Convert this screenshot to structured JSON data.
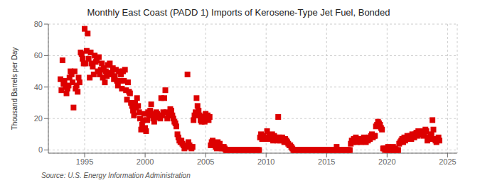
{
  "chart_data": {
    "type": "scatter",
    "title": "Monthly East Coast (PADD 1) Imports of Kerosene-Type Jet Fuel, Bonded",
    "ylabel": "Thousand Barrels per Day",
    "annotations": [
      "Source: U.S. Energy Information Administration"
    ],
    "color": "#dd0000",
    "marker": "square",
    "grid": true,
    "xlim": [
      1992.0,
      2025.8
    ],
    "xticks": [
      1995,
      2000,
      2005,
      2010,
      2015,
      2020,
      2025
    ],
    "ylim": [
      -2,
      80
    ],
    "yticks": [
      0,
      20,
      40,
      60,
      80
    ],
    "x": [
      1993.0,
      1993.08,
      1993.17,
      1993.25,
      1993.33,
      1993.42,
      1993.5,
      1993.58,
      1993.67,
      1993.75,
      1993.83,
      1993.92,
      1994.0,
      1994.08,
      1994.17,
      1994.25,
      1994.33,
      1994.42,
      1994.5,
      1994.58,
      1994.67,
      1994.75,
      1994.83,
      1994.92,
      1995.0,
      1995.08,
      1995.17,
      1995.25,
      1995.33,
      1995.42,
      1995.5,
      1995.58,
      1995.67,
      1995.75,
      1995.83,
      1995.92,
      1996.0,
      1996.08,
      1996.17,
      1996.25,
      1996.33,
      1996.42,
      1996.5,
      1996.58,
      1996.67,
      1996.75,
      1996.83,
      1996.92,
      1997.0,
      1997.08,
      1997.17,
      1997.25,
      1997.33,
      1997.42,
      1997.5,
      1997.58,
      1997.67,
      1997.75,
      1997.83,
      1997.92,
      1998.0,
      1998.08,
      1998.17,
      1998.25,
      1998.33,
      1998.42,
      1998.5,
      1998.58,
      1998.67,
      1998.75,
      1998.83,
      1998.92,
      1999.0,
      1999.08,
      1999.17,
      1999.25,
      1999.33,
      1999.42,
      1999.5,
      1999.58,
      1999.67,
      1999.75,
      1999.83,
      1999.92,
      2000.0,
      2000.08,
      2000.17,
      2000.25,
      2000.33,
      2000.42,
      2000.5,
      2000.58,
      2000.67,
      2000.75,
      2000.83,
      2000.92,
      2001.0,
      2001.08,
      2001.17,
      2001.25,
      2001.33,
      2001.42,
      2001.5,
      2001.58,
      2001.67,
      2001.75,
      2001.83,
      2001.92,
      2002.0,
      2002.08,
      2002.17,
      2002.25,
      2002.33,
      2002.42,
      2002.5,
      2002.58,
      2002.67,
      2002.75,
      2002.83,
      2002.92,
      2003.0,
      2003.08,
      2003.17,
      2003.25,
      2003.33,
      2003.5,
      2003.58,
      2003.67,
      2003.75,
      2003.83,
      2003.92,
      2004.0,
      2004.08,
      2004.17,
      2004.25,
      2004.33,
      2004.42,
      2004.5,
      2004.58,
      2004.67,
      2004.75,
      2004.83,
      2004.92,
      2005.0,
      2005.08,
      2005.17,
      2005.25,
      2005.33,
      2005.42,
      2005.5,
      2005.58,
      2005.67,
      2005.75,
      2005.83,
      2005.92,
      2006.0,
      2006.08,
      2006.17,
      2006.25,
      2006.33,
      2006.42,
      2006.5,
      2006.58,
      2006.67,
      2006.75,
      2006.83,
      2006.92,
      2007.0,
      2007.08,
      2007.17,
      2007.25,
      2007.33,
      2007.42,
      2007.5,
      2007.58,
      2007.67,
      2007.75,
      2007.83,
      2007.92,
      2008.0,
      2008.08,
      2008.17,
      2008.25,
      2008.33,
      2008.42,
      2008.5,
      2008.58,
      2008.67,
      2008.75,
      2008.83,
      2008.92,
      2009.0,
      2009.08,
      2009.17,
      2009.25,
      2009.33,
      2009.42,
      2009.5,
      2009.58,
      2009.67,
      2009.75,
      2009.83,
      2009.92,
      2010.0,
      2010.08,
      2010.17,
      2010.25,
      2010.33,
      2010.42,
      2010.5,
      2010.58,
      2010.67,
      2010.75,
      2010.83,
      2010.92,
      2011.0,
      2011.08,
      2011.17,
      2011.25,
      2011.33,
      2011.42,
      2011.5,
      2011.58,
      2011.67,
      2011.75,
      2011.83,
      2011.92,
      2012.0,
      2012.08,
      2012.17,
      2012.25,
      2012.33,
      2012.42,
      2012.5,
      2012.58,
      2012.67,
      2012.75,
      2012.83,
      2012.92,
      2013.0,
      2013.08,
      2013.17,
      2013.25,
      2013.33,
      2013.42,
      2013.5,
      2013.58,
      2013.67,
      2013.75,
      2013.83,
      2013.92,
      2014.0,
      2014.08,
      2014.17,
      2014.25,
      2014.33,
      2014.42,
      2014.5,
      2014.58,
      2014.67,
      2014.75,
      2014.83,
      2014.92,
      2015.0,
      2015.08,
      2015.17,
      2015.25,
      2015.33,
      2015.42,
      2015.5,
      2015.58,
      2015.67,
      2015.75,
      2015.83,
      2015.92,
      2016.0,
      2016.08,
      2016.17,
      2016.25,
      2016.33,
      2016.42,
      2016.5,
      2016.58,
      2016.67,
      2016.75,
      2016.83,
      2016.92,
      2017.0,
      2017.08,
      2017.17,
      2017.25,
      2017.33,
      2017.42,
      2017.5,
      2017.58,
      2017.67,
      2017.75,
      2017.83,
      2017.92,
      2018.0,
      2018.08,
      2018.17,
      2018.25,
      2018.33,
      2018.42,
      2018.5,
      2018.58,
      2018.67,
      2018.75,
      2018.83,
      2018.92,
      2019.0,
      2019.08,
      2019.17,
      2019.25,
      2019.33,
      2019.42,
      2019.5,
      2019.58,
      2019.67,
      2019.75,
      2019.83,
      2019.92,
      2020.0,
      2020.08,
      2020.17,
      2020.25,
      2020.33,
      2020.42,
      2020.5,
      2020.58,
      2020.67,
      2020.75,
      2020.83,
      2020.92,
      2021.0,
      2021.08,
      2021.17,
      2021.25,
      2021.33,
      2021.42,
      2021.5,
      2021.58,
      2021.67,
      2021.75,
      2021.83,
      2021.92,
      2022.0,
      2022.08,
      2022.17,
      2022.25,
      2022.33,
      2022.42,
      2022.5,
      2022.58,
      2022.67,
      2022.75,
      2022.83,
      2022.92,
      2023.0,
      2023.08,
      2023.17,
      2023.25,
      2023.33,
      2023.42,
      2023.5,
      2023.58,
      2023.67,
      2023.75,
      2023.83,
      2023.92,
      2024.0,
      2024.08,
      2024.17,
      2024.25,
      2024.33
    ],
    "values": [
      45,
      38,
      57,
      42,
      44,
      40,
      36,
      39,
      41,
      46,
      50,
      48,
      43,
      27,
      50,
      39,
      41,
      37,
      46,
      43,
      62,
      61,
      58,
      55,
      77,
      55,
      63,
      74,
      58,
      46,
      62,
      55,
      53,
      48,
      60,
      56,
      57,
      50,
      59,
      48,
      51,
      55,
      46,
      52,
      43,
      50,
      47,
      54,
      48,
      55,
      49,
      48,
      52,
      45,
      47,
      51,
      44,
      41,
      50,
      44,
      48,
      39,
      50,
      44,
      51,
      38,
      32,
      43,
      37,
      36,
      30,
      28,
      25,
      22,
      30,
      27,
      33,
      28,
      24,
      20,
      13,
      16,
      19,
      23,
      14,
      12,
      19,
      24,
      22,
      25,
      29,
      23,
      20,
      18,
      21,
      24,
      23,
      22,
      21,
      20,
      33,
      22,
      24,
      33,
      38,
      24,
      20,
      22,
      22,
      26,
      25,
      22,
      20,
      18,
      17,
      15,
      10,
      8,
      6,
      5,
      6,
      4,
      3,
      1,
      2,
      48,
      5,
      3,
      2,
      1,
      2,
      19,
      22,
      24,
      33,
      28,
      25,
      22,
      19,
      18,
      21,
      20,
      18,
      23,
      20,
      22,
      19,
      21,
      3,
      5,
      6,
      4,
      3,
      2,
      1,
      5,
      3,
      4,
      2,
      1,
      1,
      2,
      1,
      0,
      0,
      0,
      0,
      0,
      0,
      0,
      0,
      0,
      0,
      0,
      0,
      0,
      0,
      0,
      0,
      0,
      0,
      0,
      0,
      0,
      0,
      0,
      0,
      0,
      0,
      0,
      0,
      0,
      0,
      0,
      0,
      0,
      0,
      8,
      10,
      7,
      9,
      8,
      7,
      7,
      12,
      8,
      9,
      7,
      8,
      10,
      6,
      9,
      7,
      8,
      6,
      21,
      8,
      6,
      7,
      8,
      6,
      5,
      7,
      6,
      5,
      4,
      3,
      3,
      2,
      1,
      0,
      0,
      0,
      0,
      0,
      0,
      0,
      0,
      0,
      0,
      0,
      0,
      0,
      0,
      0,
      0,
      0,
      0,
      0,
      0,
      0,
      0,
      0,
      0,
      0,
      0,
      0,
      0,
      0,
      0,
      0,
      0,
      0,
      0,
      0,
      0,
      0,
      0,
      0,
      0,
      0,
      0,
      0,
      2,
      0,
      0,
      0,
      0,
      0,
      0,
      0,
      0,
      0,
      0,
      0,
      0,
      0,
      4,
      6,
      5,
      7,
      6,
      8,
      5,
      7,
      6,
      6,
      5,
      6,
      7,
      8,
      6,
      5,
      7,
      6,
      8,
      7,
      9,
      10,
      8,
      9,
      9,
      15,
      16,
      18,
      17,
      16,
      14,
      13,
      1,
      1,
      0,
      1,
      0,
      2,
      1,
      0,
      0,
      1,
      2,
      0,
      1,
      0,
      0,
      0,
      4,
      5,
      6,
      7,
      5,
      8,
      6,
      7,
      9,
      8,
      7,
      9,
      7,
      10,
      9,
      8,
      10,
      11,
      9,
      12,
      10,
      11,
      10,
      12,
      9,
      11,
      13,
      12,
      6,
      8,
      7,
      9,
      10,
      19,
      13,
      7,
      6,
      5,
      7,
      8,
      6
    ]
  }
}
